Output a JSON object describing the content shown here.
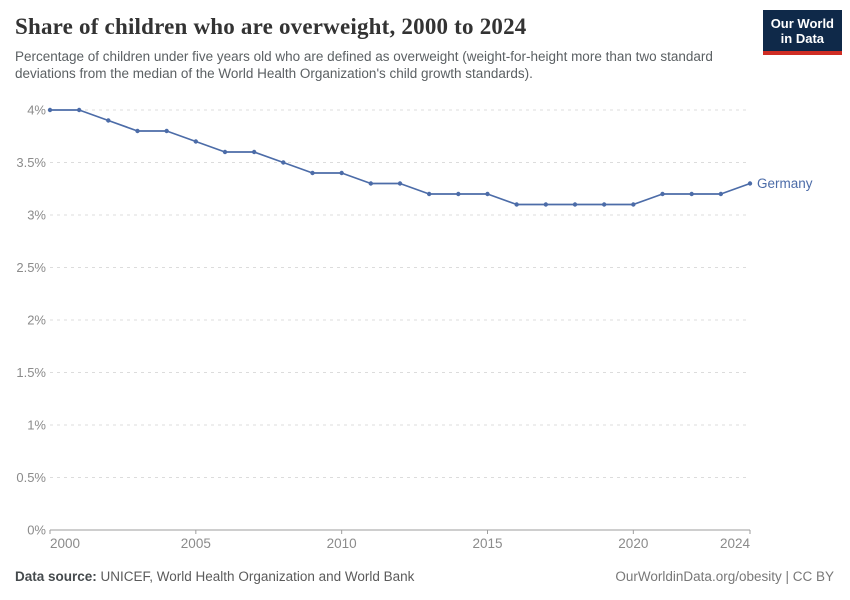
{
  "header": {
    "title": "Share of children who are overweight, 2000 to 2024",
    "subtitle": "Percentage of children under five years old who are defined as overweight (weight-for-height more than two standard deviations from the median of the World Health Organization's child growth standards)."
  },
  "logo": {
    "line1": "Our World",
    "line2": "in Data",
    "bg_color": "#0f2949",
    "accent_color": "#cf2d24"
  },
  "chart_data": {
    "type": "line",
    "title": "Share of children who are overweight, 2000 to 2024",
    "x": [
      2000,
      2001,
      2002,
      2003,
      2004,
      2005,
      2006,
      2007,
      2008,
      2009,
      2010,
      2011,
      2012,
      2013,
      2014,
      2015,
      2016,
      2017,
      2018,
      2019,
      2020,
      2021,
      2022,
      2023,
      2024
    ],
    "series": [
      {
        "name": "Germany",
        "color": "#4c6ca8",
        "values": [
          4.0,
          4.0,
          3.9,
          3.8,
          3.8,
          3.7,
          3.6,
          3.6,
          3.5,
          3.4,
          3.4,
          3.3,
          3.3,
          3.2,
          3.2,
          3.2,
          3.1,
          3.1,
          3.1,
          3.1,
          3.1,
          3.2,
          3.2,
          3.2,
          3.3
        ]
      }
    ],
    "xlabel": "",
    "ylabel": "",
    "xlim": [
      2000,
      2024
    ],
    "ylim": [
      0,
      4
    ],
    "x_ticks": [
      2000,
      2005,
      2010,
      2015,
      2020,
      2024
    ],
    "y_ticks": [
      0,
      0.5,
      1,
      1.5,
      2,
      2.5,
      3,
      3.5,
      4
    ],
    "y_tick_suffix": "%",
    "grid": "horizontal-dashed",
    "legend": "inline-end-label",
    "grid_color": "#dcdcdc",
    "axis_color": "#9e9e9e",
    "tick_label_color": "#8b8b8b"
  },
  "footer": {
    "datasource_label": "Data source:",
    "datasource_value": " UNICEF, World Health Organization and World Bank",
    "link": "OurWorldinData.org/obesity | CC BY"
  }
}
